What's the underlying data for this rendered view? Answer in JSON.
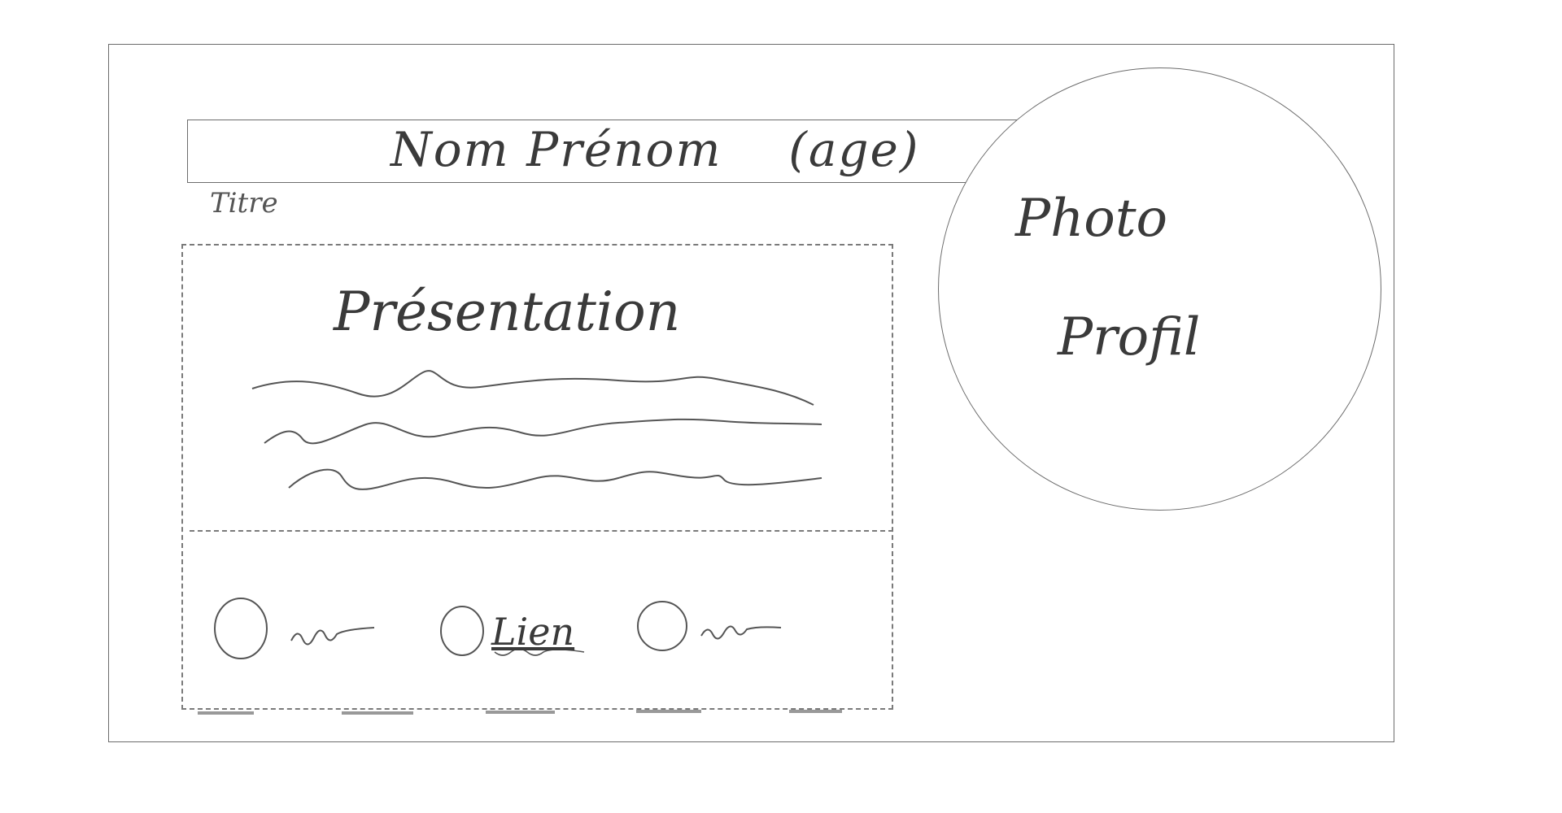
{
  "card": {
    "title": "Nom Prénom    (age)",
    "title_caption": "Titre",
    "photo_line1": "Photo",
    "photo_line2": "Profil",
    "presentation_heading": "Présentation",
    "link_label": "Lien"
  }
}
